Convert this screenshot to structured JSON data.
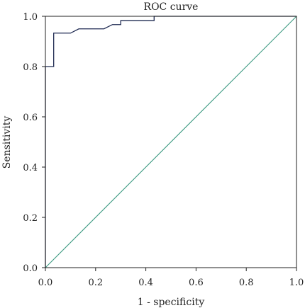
{
  "chart_data": {
    "type": "line",
    "title": "ROC curve",
    "xlabel": "1 - specificity",
    "ylabel": "Sensitivity",
    "xlim": [
      0,
      1
    ],
    "ylim": [
      0,
      1
    ],
    "x_ticks": [
      "0.0",
      "0.2",
      "0.4",
      "0.6",
      "0.8",
      "1.0"
    ],
    "y_ticks": [
      "0.0",
      "0.2",
      "0.4",
      "0.6",
      "0.8",
      "1.0"
    ],
    "grid": false,
    "legend": "none",
    "series": [
      {
        "color": "#1f2a52",
        "style": "step",
        "x": [
          0.0,
          0.0,
          0.033,
          0.033,
          0.1,
          0.133,
          0.233,
          0.267,
          0.3,
          0.3,
          0.433,
          0.433,
          1.0
        ],
        "y": [
          0.0,
          0.8,
          0.8,
          0.933,
          0.933,
          0.95,
          0.95,
          0.967,
          0.967,
          0.983,
          0.983,
          1.0,
          1.0
        ]
      },
      {
        "color": "#3d9a82",
        "style": "line",
        "x": [
          0,
          1
        ],
        "y": [
          0,
          1
        ]
      }
    ]
  }
}
